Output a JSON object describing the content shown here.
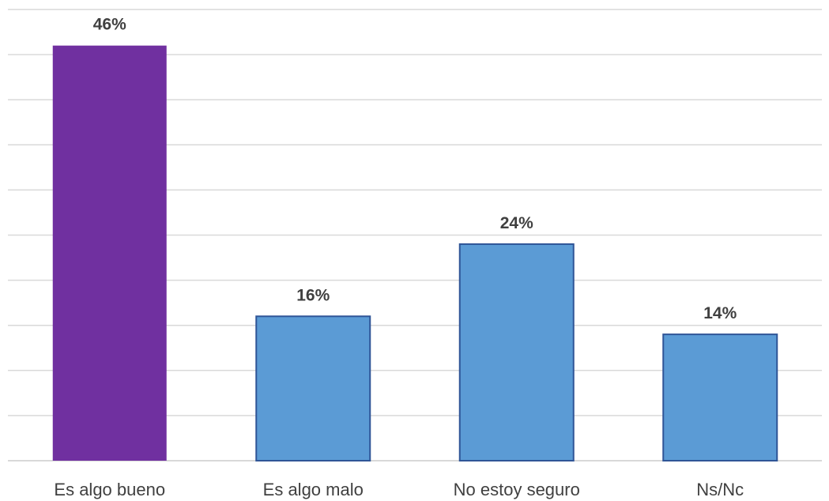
{
  "chart_data": {
    "type": "bar",
    "title": "",
    "xlabel": "",
    "ylabel": "",
    "categories": [
      "Es algo bueno",
      "Es algo malo",
      "No estoy seguro",
      "Ns/Nc"
    ],
    "values": [
      46,
      16,
      24,
      14
    ],
    "data_labels": [
      "46%",
      "16%",
      "24%",
      "14%"
    ],
    "colors": [
      "#7030a0",
      "#5b9bd5",
      "#5b9bd5",
      "#5b9bd5"
    ],
    "bar_edge_color": "#2f5597",
    "ylim": [
      0,
      50
    ],
    "ytick_step": 5,
    "grid": true,
    "y_axis_labels_visible": false,
    "legend": "none"
  }
}
